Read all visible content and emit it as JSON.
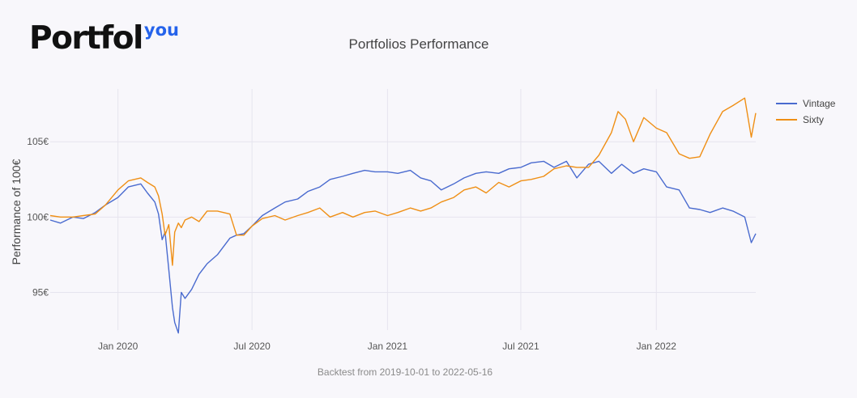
{
  "logo": {
    "main": "Portfol",
    "accent": "you"
  },
  "colors": {
    "vintage": "#4a6bcf",
    "sixty": "#ef8f15",
    "grid": "#e6e4ee"
  },
  "chart_data": {
    "type": "line",
    "title": "Portfolios Performance",
    "xlabel": "Backtest from 2019-10-01 to 2022-05-16",
    "ylabel": "Performance of 100€",
    "x_range": [
      "2019-10-01",
      "2022-05-16"
    ],
    "ylim": [
      92.5,
      108.5
    ],
    "y_ticks": [
      95,
      100,
      105
    ],
    "y_tick_labels": [
      "95€",
      "100€",
      "105€"
    ],
    "x_ticks": [
      "2020-01-01",
      "2020-07-01",
      "2021-01-01",
      "2021-07-01",
      "2022-01-01"
    ],
    "x_tick_labels": [
      "Jan 2020",
      "Jul 2020",
      "Jan 2021",
      "Jul 2021",
      "Jan 2022"
    ],
    "legend_position": "top-right",
    "series": [
      {
        "name": "Vintage",
        "dates": [
          "2019-10-01",
          "2019-10-15",
          "2019-11-01",
          "2019-11-15",
          "2019-12-01",
          "2019-12-15",
          "2020-01-01",
          "2020-01-15",
          "2020-02-01",
          "2020-02-10",
          "2020-02-20",
          "2020-02-25",
          "2020-03-01",
          "2020-03-05",
          "2020-03-10",
          "2020-03-15",
          "2020-03-18",
          "2020-03-23",
          "2020-03-27",
          "2020-04-01",
          "2020-04-10",
          "2020-04-20",
          "2020-05-01",
          "2020-05-15",
          "2020-06-01",
          "2020-06-10",
          "2020-06-20",
          "2020-07-01",
          "2020-07-15",
          "2020-08-01",
          "2020-08-15",
          "2020-09-01",
          "2020-09-15",
          "2020-10-01",
          "2020-10-15",
          "2020-11-01",
          "2020-11-15",
          "2020-12-01",
          "2020-12-15",
          "2021-01-01",
          "2021-01-15",
          "2021-02-01",
          "2021-02-15",
          "2021-03-01",
          "2021-03-15",
          "2021-04-01",
          "2021-04-15",
          "2021-05-01",
          "2021-05-15",
          "2021-06-01",
          "2021-06-15",
          "2021-07-01",
          "2021-07-15",
          "2021-08-01",
          "2021-08-15",
          "2021-09-01",
          "2021-09-15",
          "2021-10-01",
          "2021-10-15",
          "2021-11-01",
          "2021-11-15",
          "2021-12-01",
          "2021-12-15",
          "2022-01-01",
          "2022-01-15",
          "2022-02-01",
          "2022-02-15",
          "2022-03-01",
          "2022-03-15",
          "2022-04-01",
          "2022-04-15",
          "2022-05-01",
          "2022-05-10",
          "2022-05-16"
        ],
        "values": [
          99.8,
          99.6,
          100.0,
          99.9,
          100.3,
          100.8,
          101.3,
          102.0,
          102.2,
          101.6,
          101.0,
          100.2,
          98.5,
          99.0,
          96.5,
          94.0,
          93.0,
          92.3,
          95.0,
          94.6,
          95.2,
          96.2,
          96.9,
          97.5,
          98.6,
          98.8,
          98.9,
          99.4,
          100.1,
          100.6,
          101.0,
          101.2,
          101.7,
          102.0,
          102.5,
          102.7,
          102.9,
          103.1,
          103.0,
          103.0,
          102.9,
          103.1,
          102.6,
          102.4,
          101.8,
          102.2,
          102.6,
          102.9,
          103.0,
          102.9,
          103.2,
          103.3,
          103.6,
          103.7,
          103.3,
          103.7,
          102.6,
          103.5,
          103.7,
          102.9,
          103.5,
          102.9,
          103.2,
          103.0,
          102.0,
          101.8,
          100.6,
          100.5,
          100.3,
          100.6,
          100.4,
          100.0,
          98.3,
          98.9
        ]
      },
      {
        "name": "Sixty",
        "dates": [
          "2019-10-01",
          "2019-10-15",
          "2019-11-01",
          "2019-11-15",
          "2019-12-01",
          "2019-12-15",
          "2020-01-01",
          "2020-01-15",
          "2020-02-01",
          "2020-02-10",
          "2020-02-20",
          "2020-02-25",
          "2020-03-01",
          "2020-03-05",
          "2020-03-10",
          "2020-03-15",
          "2020-03-18",
          "2020-03-23",
          "2020-03-27",
          "2020-04-01",
          "2020-04-10",
          "2020-04-20",
          "2020-05-01",
          "2020-05-15",
          "2020-06-01",
          "2020-06-10",
          "2020-06-20",
          "2020-07-01",
          "2020-07-15",
          "2020-08-01",
          "2020-08-15",
          "2020-09-01",
          "2020-09-15",
          "2020-10-01",
          "2020-10-15",
          "2020-11-01",
          "2020-11-15",
          "2020-12-01",
          "2020-12-15",
          "2021-01-01",
          "2021-01-15",
          "2021-02-01",
          "2021-02-15",
          "2021-03-01",
          "2021-03-15",
          "2021-04-01",
          "2021-04-15",
          "2021-05-01",
          "2021-05-15",
          "2021-06-01",
          "2021-06-15",
          "2021-07-01",
          "2021-07-15",
          "2021-08-01",
          "2021-08-15",
          "2021-09-01",
          "2021-09-15",
          "2021-10-01",
          "2021-10-15",
          "2021-11-01",
          "2021-11-10",
          "2021-11-20",
          "2021-12-01",
          "2021-12-15",
          "2022-01-01",
          "2022-01-15",
          "2022-02-01",
          "2022-02-15",
          "2022-03-01",
          "2022-03-15",
          "2022-04-01",
          "2022-04-15",
          "2022-05-01",
          "2022-05-10",
          "2022-05-16"
        ],
        "values": [
          100.1,
          100.0,
          100.0,
          100.1,
          100.2,
          100.8,
          101.8,
          102.4,
          102.6,
          102.3,
          102.0,
          101.4,
          100.2,
          98.8,
          99.5,
          96.8,
          99.0,
          99.6,
          99.3,
          99.8,
          100.0,
          99.7,
          100.4,
          100.4,
          100.2,
          98.8,
          98.8,
          99.4,
          99.9,
          100.1,
          99.8,
          100.1,
          100.3,
          100.6,
          100.0,
          100.3,
          100.0,
          100.3,
          100.4,
          100.1,
          100.3,
          100.6,
          100.4,
          100.6,
          101.0,
          101.3,
          101.8,
          102.0,
          101.6,
          102.3,
          102.0,
          102.4,
          102.5,
          102.7,
          103.2,
          103.4,
          103.3,
          103.3,
          104.1,
          105.6,
          107.0,
          106.5,
          105.0,
          106.6,
          105.9,
          105.6,
          104.2,
          103.9,
          104.0,
          105.5,
          107.0,
          107.4,
          107.9,
          105.3,
          106.9
        ]
      }
    ]
  }
}
